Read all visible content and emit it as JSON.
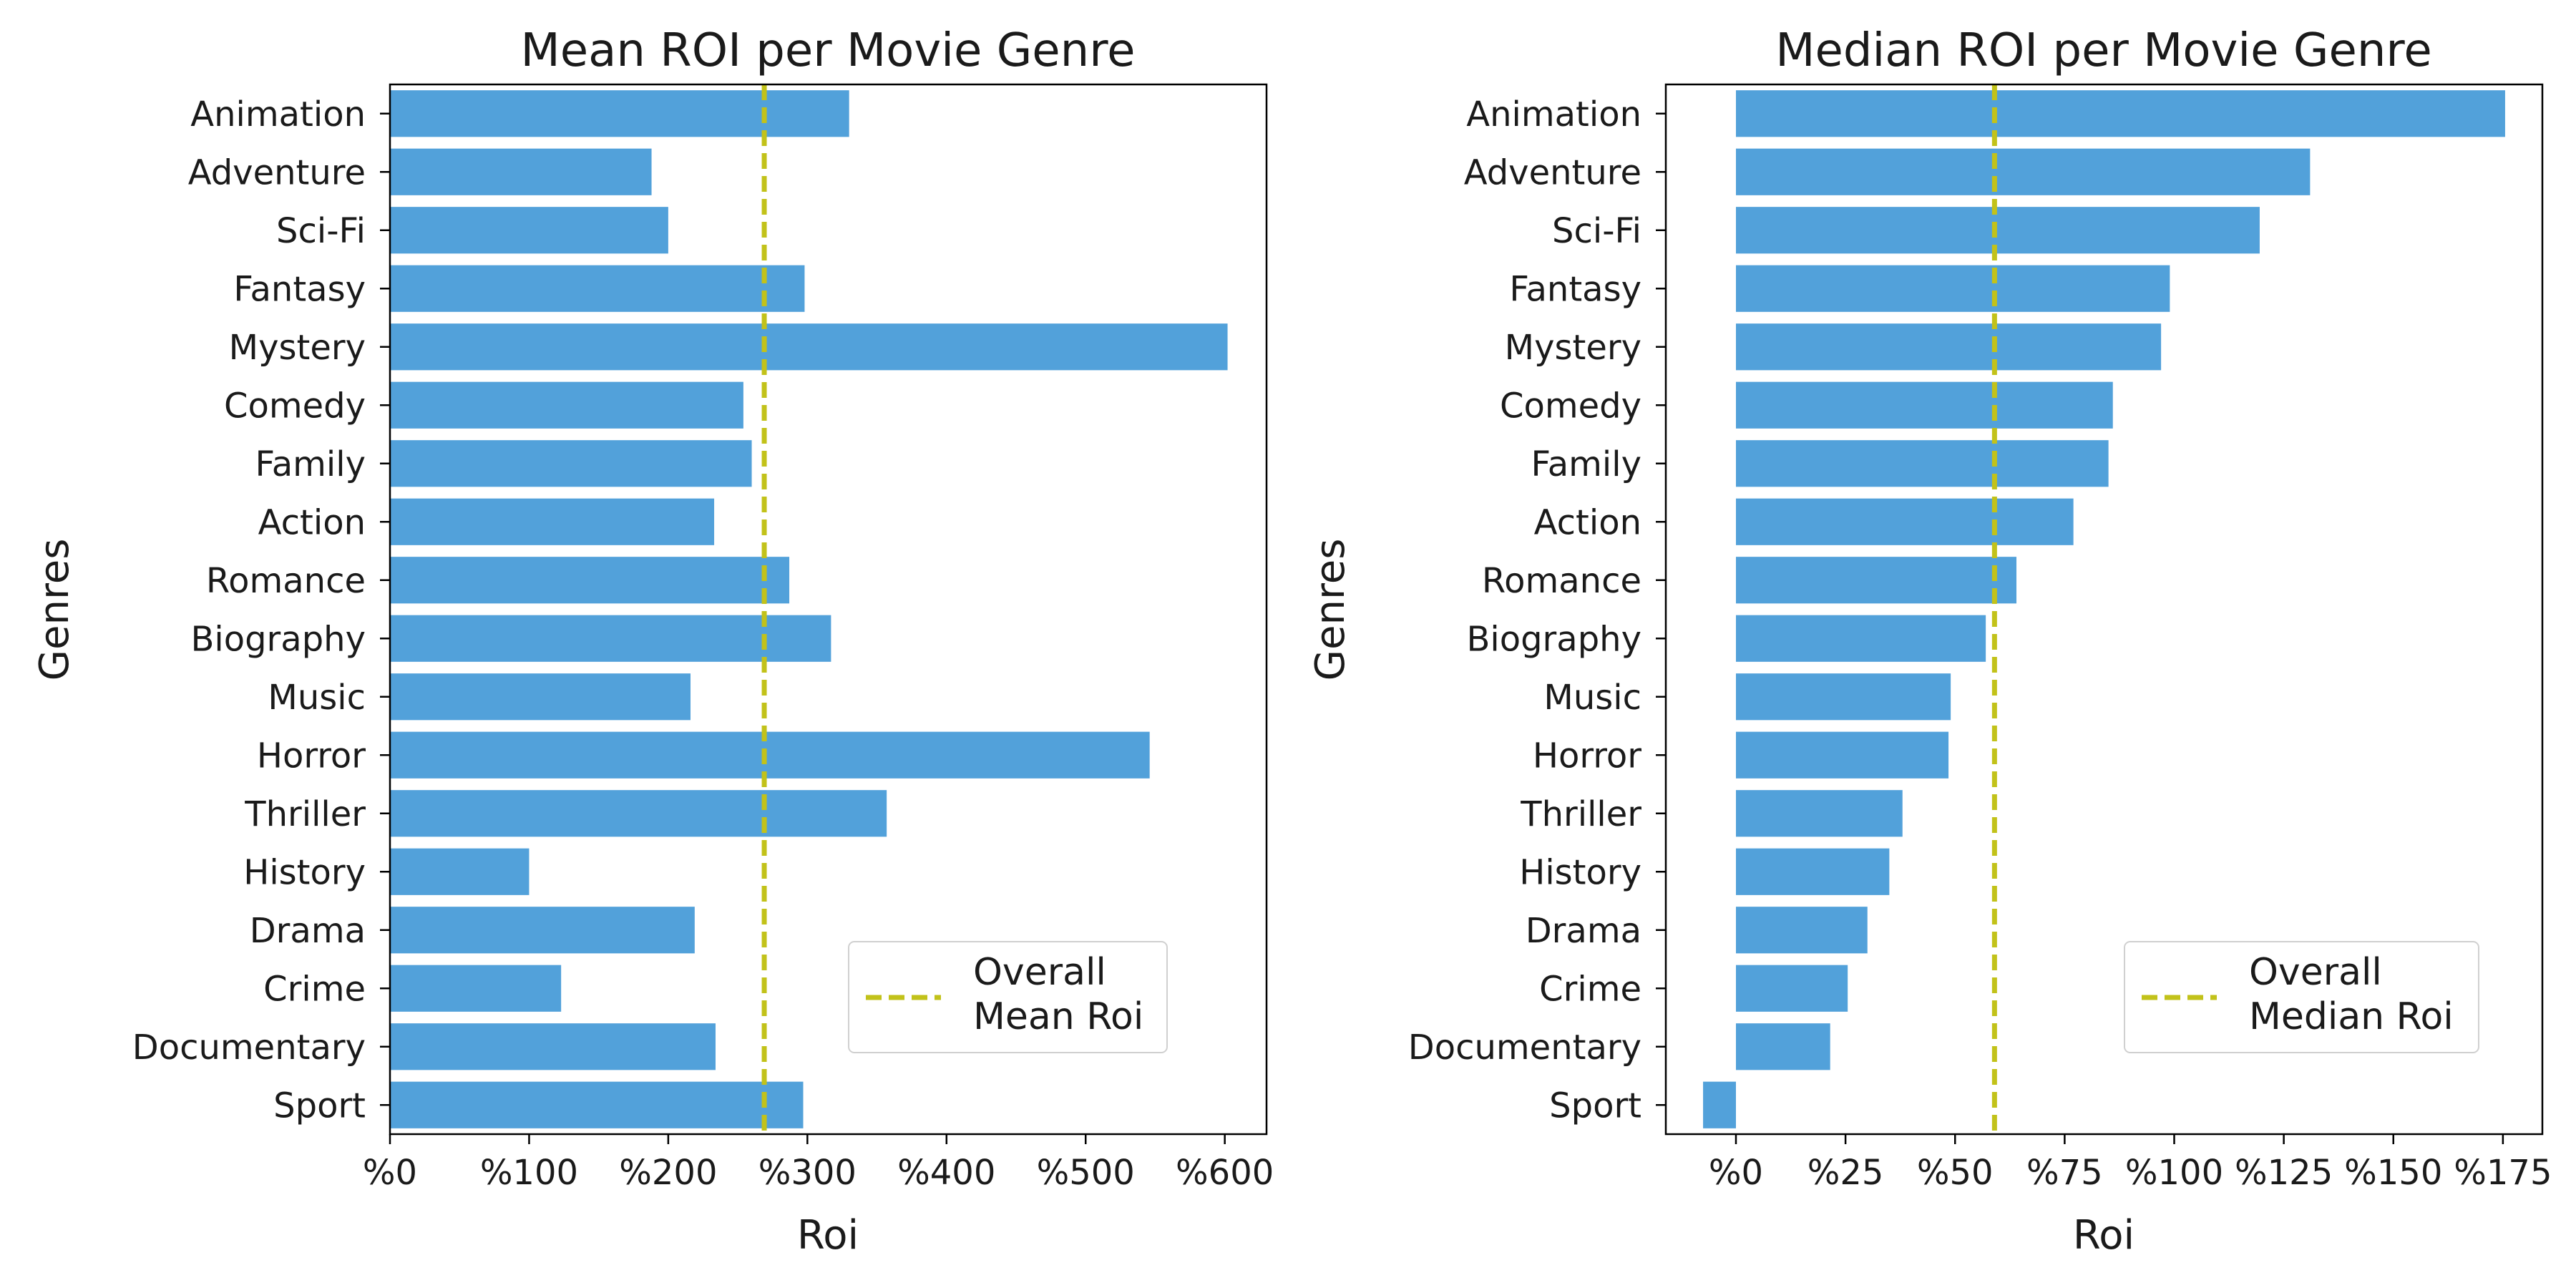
{
  "colors": {
    "bar": "#52a1da",
    "reference_line": "#c2c21a",
    "axis": "#000000",
    "legend_border": "#d0d0d0"
  },
  "chart_data": [
    {
      "type": "bar",
      "orientation": "horizontal",
      "title": "Mean ROI per Movie Genre",
      "xlabel": "Roi",
      "ylabel": "Genres",
      "categories": [
        "Animation",
        "Adventure",
        "Sci-Fi",
        "Fantasy",
        "Mystery",
        "Comedy",
        "Family",
        "Action",
        "Romance",
        "Biography",
        "Music",
        "Horror",
        "Thriller",
        "History",
        "Drama",
        "Crime",
        "Documentary",
        "Sport"
      ],
      "values": [
        330,
        188,
        200,
        298,
        602,
        254,
        260,
        233,
        287,
        317,
        216,
        546,
        357,
        100,
        219,
        123,
        234,
        297
      ],
      "xlim": [
        0,
        630
      ],
      "xticks": [
        0,
        100,
        200,
        300,
        400,
        500,
        600
      ],
      "xtick_labels": [
        "%0",
        "%100",
        "%200",
        "%300",
        "%400",
        "%500",
        "%600"
      ],
      "reference_line": 269,
      "legend": {
        "lines": [
          "Overall",
          "Mean Roi"
        ],
        "position": "lower-right"
      },
      "grid": false
    },
    {
      "type": "bar",
      "orientation": "horizontal",
      "title": "Median ROI per Movie Genre",
      "xlabel": "Roi",
      "ylabel": "Genres",
      "categories": [
        "Animation",
        "Adventure",
        "Sci-Fi",
        "Fantasy",
        "Mystery",
        "Comedy",
        "Family",
        "Action",
        "Romance",
        "Biography",
        "Music",
        "Horror",
        "Thriller",
        "History",
        "Drama",
        "Crime",
        "Documentary",
        "Sport"
      ],
      "values": [
        175.5,
        131,
        119.5,
        99,
        97,
        86,
        85,
        77,
        64,
        57,
        49,
        48.5,
        38,
        35,
        30,
        25.5,
        21.5,
        -7.5
      ],
      "xlim": [
        -16,
        184
      ],
      "xticks": [
        0,
        25,
        50,
        75,
        100,
        125,
        150,
        175
      ],
      "xtick_labels": [
        "%0",
        "%25",
        "%50",
        "%75",
        "%100",
        "%125",
        "%150",
        "%175"
      ],
      "reference_line": 59,
      "legend": {
        "lines": [
          "Overall",
          "Median Roi"
        ],
        "position": "lower-right"
      },
      "grid": false
    }
  ]
}
